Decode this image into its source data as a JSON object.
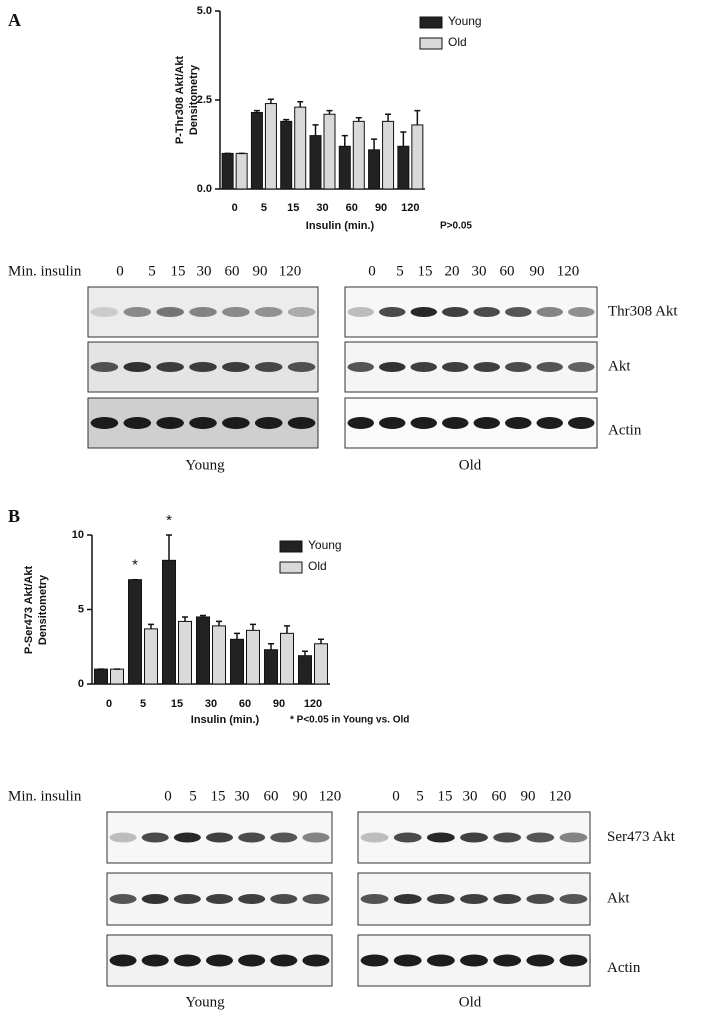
{
  "chart_data": [
    {
      "type": "bar",
      "panel": "A",
      "ylabel": [
        "P-Thr308 Akt/Akt",
        "Densitometry"
      ],
      "xlabel": "Insulin (min.)",
      "note": "P>0.05",
      "categories": [
        "0",
        "5",
        "15",
        "30",
        "60",
        "90",
        "120"
      ],
      "ylim": [
        0,
        5
      ],
      "yticks": [
        {
          "value": 0,
          "label": "0.0"
        },
        {
          "value": 2.5,
          "label": "2.5"
        },
        {
          "value": 5,
          "label": "5.0"
        }
      ],
      "series": [
        {
          "name": "Young",
          "color": "#222222",
          "values": [
            1.0,
            2.15,
            1.9,
            1.5,
            1.2,
            1.1,
            1.2
          ],
          "errors": [
            0,
            0.05,
            0.05,
            0.3,
            0.3,
            0.3,
            0.4
          ]
        },
        {
          "name": "Old",
          "color": "#d9d9d9",
          "values": [
            1.0,
            2.4,
            2.3,
            2.1,
            1.9,
            1.9,
            1.8
          ],
          "errors": [
            0,
            0.12,
            0.15,
            0.1,
            0.1,
            0.2,
            0.4
          ]
        }
      ],
      "annotations": []
    },
    {
      "type": "bar",
      "panel": "B",
      "ylabel": [
        "P-Ser473 Akt/Akt",
        "Densitometry"
      ],
      "xlabel": "Insulin (min.)",
      "note": "* P<0.05 in Young vs. Old",
      "categories": [
        "0",
        "5",
        "15",
        "30",
        "60",
        "90",
        "120"
      ],
      "ylim": [
        0,
        10
      ],
      "yticks": [
        0,
        5,
        10
      ],
      "series": [
        {
          "name": "Young",
          "color": "#222222",
          "values": [
            1.0,
            7.0,
            8.3,
            4.5,
            3.0,
            2.3,
            1.9
          ],
          "errors": [
            0,
            0,
            1.7,
            0.1,
            0.4,
            0.4,
            0.3
          ]
        },
        {
          "name": "Old",
          "color": "#d9d9d9",
          "values": [
            1.0,
            3.7,
            4.2,
            3.9,
            3.6,
            3.4,
            2.7
          ],
          "errors": [
            0,
            0.3,
            0.3,
            0.3,
            0.4,
            0.5,
            0.3
          ]
        }
      ],
      "annotations": [
        {
          "text": "*",
          "x": "5"
        },
        {
          "text": "*",
          "x": "15"
        }
      ]
    }
  ],
  "blots": [
    {
      "header": "Min. insulin",
      "rows": [
        "Thr308 Akt",
        "Akt",
        "Actin"
      ],
      "groups": [
        {
          "name": "Young",
          "lanes": [
            "0",
            "5",
            "15",
            "30",
            "60",
            "90",
            "120"
          ]
        },
        {
          "name": "Old",
          "lanes": [
            "0",
            "5",
            "15",
            "20",
            "30",
            "60",
            "90",
            "120"
          ]
        }
      ]
    },
    {
      "header": "Min. insulin",
      "rows": [
        "Ser473 Akt",
        "Akt",
        "Actin"
      ],
      "groups": [
        {
          "name": "Young",
          "lanes": [
            "0",
            "5",
            "15",
            "30",
            "60",
            "90",
            "120"
          ]
        },
        {
          "name": "Old",
          "lanes": [
            "0",
            "5",
            "15",
            "30",
            "60",
            "90",
            "120"
          ]
        }
      ]
    }
  ]
}
